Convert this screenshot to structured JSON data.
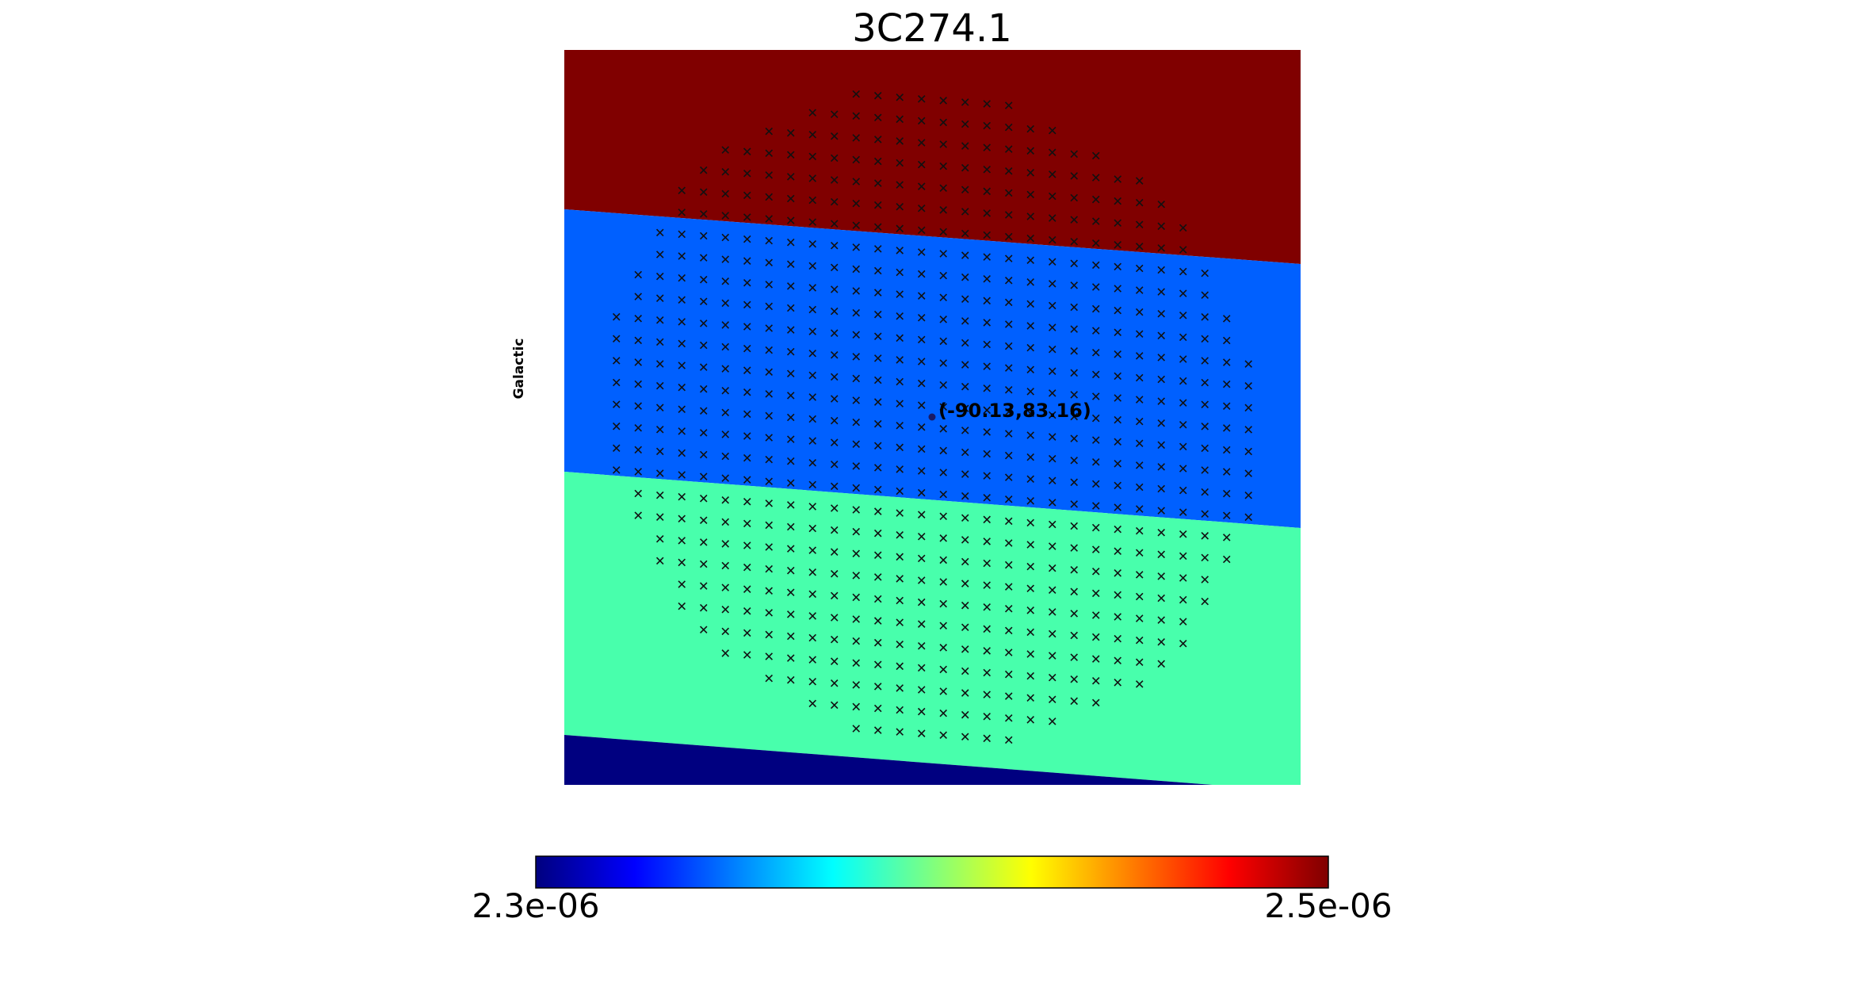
{
  "chart_data": {
    "type": "heatmap",
    "title": "3C274.1",
    "frame_label": "Galactic",
    "center_marker": {
      "label": "(-90.13,83.16)",
      "lon": -90.13,
      "lat": 83.16
    },
    "colormap": "jet",
    "colorbar": {
      "min": 2.3e-06,
      "max": 2.5e-06,
      "min_label": "2.3e-06",
      "max_label": "2.5e-06",
      "stops": [
        "#00007f",
        "#0000ff",
        "#007fff",
        "#00ffff",
        "#7fff7f",
        "#ffff00",
        "#ff7f00",
        "#ff0000",
        "#7f0000"
      ]
    },
    "map_bands": [
      {
        "name": "top",
        "value": 2.5e-06,
        "color": "#800000"
      },
      {
        "name": "upper-middle",
        "value": 2.36e-06,
        "color": "#0060ff"
      },
      {
        "name": "lower-middle",
        "value": 2.42e-06,
        "color": "#48ffac"
      },
      {
        "name": "bottom",
        "value": 2.3e-06,
        "color": "#000080"
      }
    ],
    "sample_grid": {
      "marker": "x",
      "rows": 30,
      "columns": 30,
      "footprint": "circular"
    },
    "grid": false,
    "legend": "none"
  }
}
